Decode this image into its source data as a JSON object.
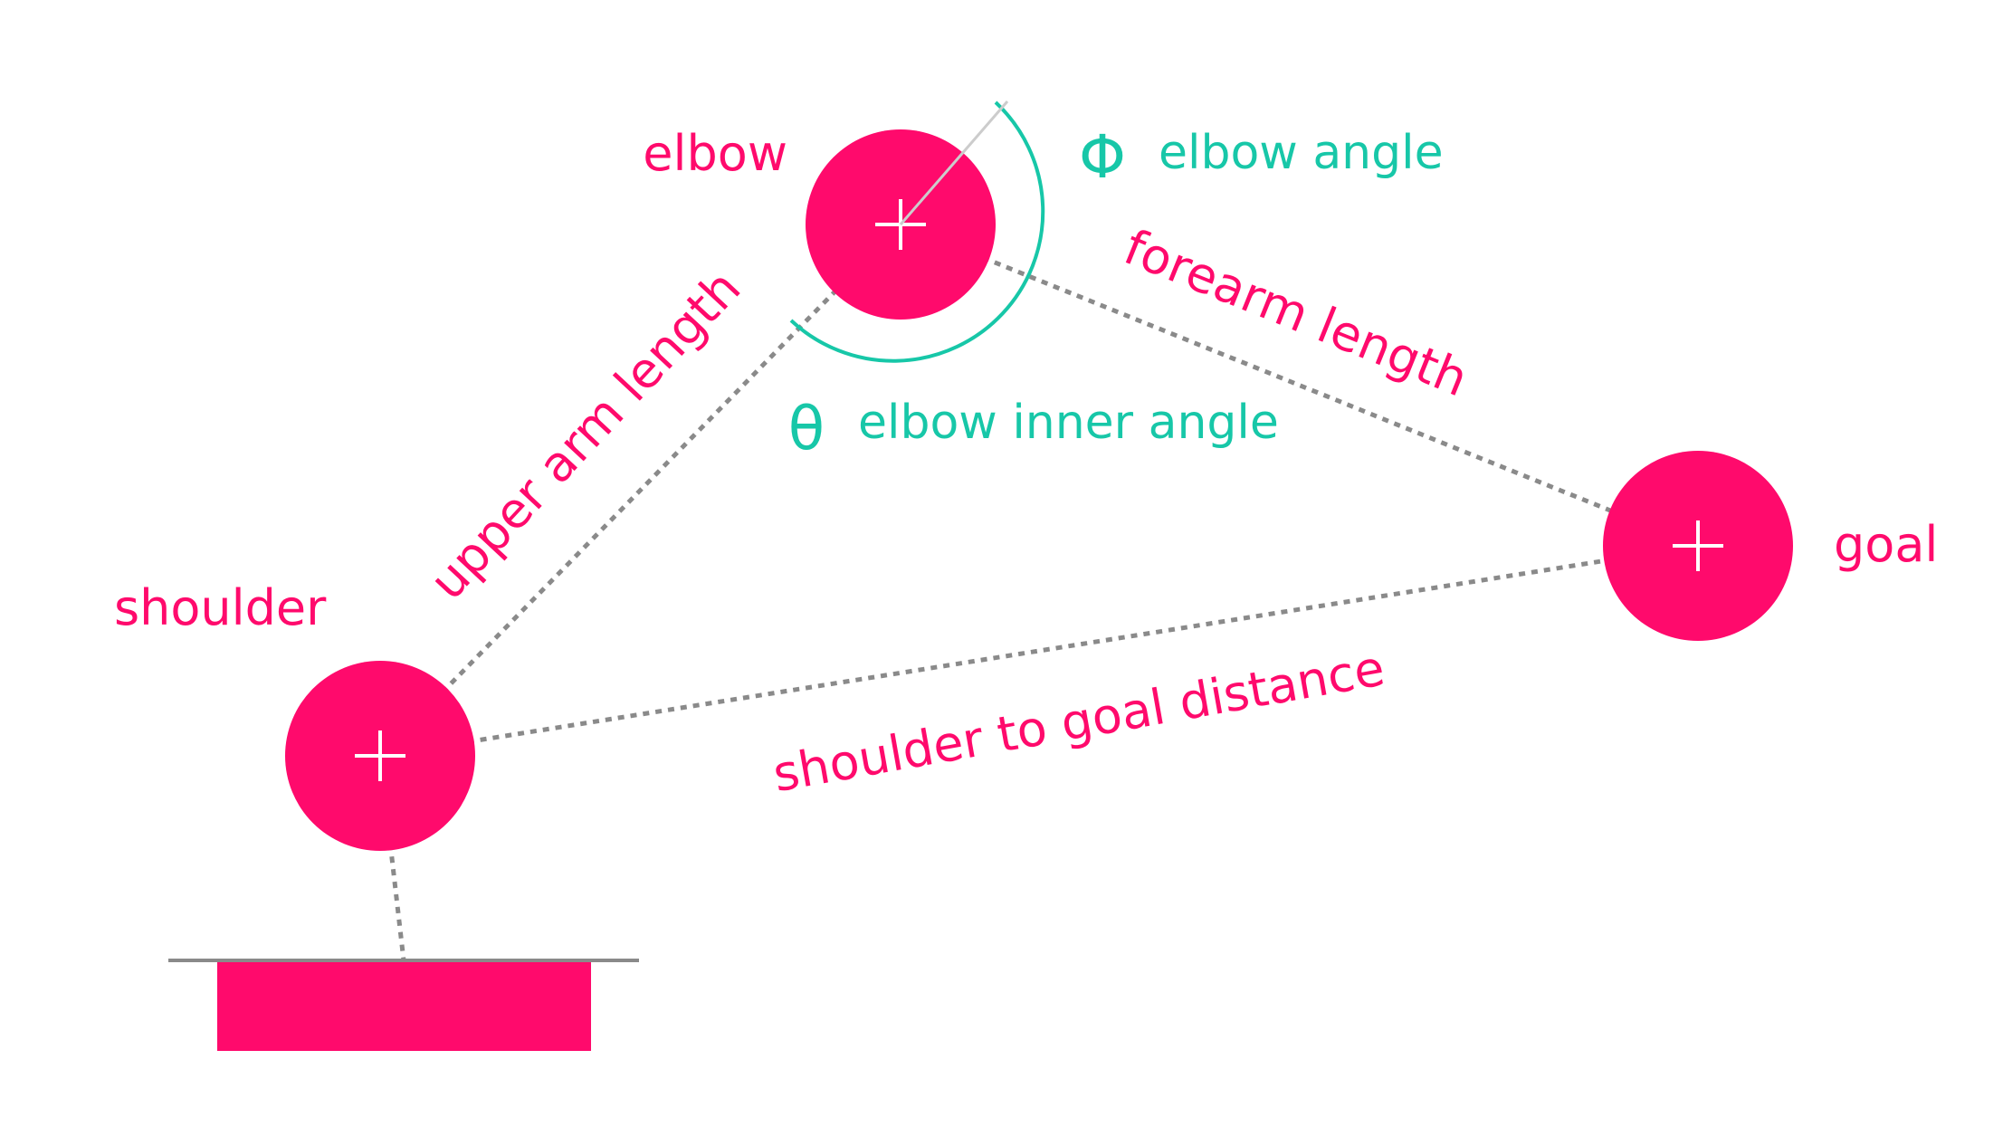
{
  "colors": {
    "joint": "#ff0a6c",
    "angle": "#17c7a8",
    "link": "#8a8a8a",
    "ground_line": "#8a8a8a",
    "marker_line": "#cccccc",
    "cross": "#ffffff"
  },
  "joints": {
    "shoulder": {
      "label": "shoulder",
      "icon": "crosshair-icon"
    },
    "elbow": {
      "label": "elbow",
      "icon": "crosshair-icon"
    },
    "goal": {
      "label": "goal",
      "icon": "crosshair-icon"
    }
  },
  "links": {
    "upper_arm": "upper arm length",
    "forearm": "forearm length",
    "shoulder_goal": "shoulder to goal distance"
  },
  "angles": {
    "elbow_angle": {
      "symbol": "Φ",
      "label": "elbow angle"
    },
    "elbow_inner_angle": {
      "symbol": "θ",
      "label": "elbow inner angle"
    }
  },
  "base": {
    "icon": "base-platform-icon"
  }
}
